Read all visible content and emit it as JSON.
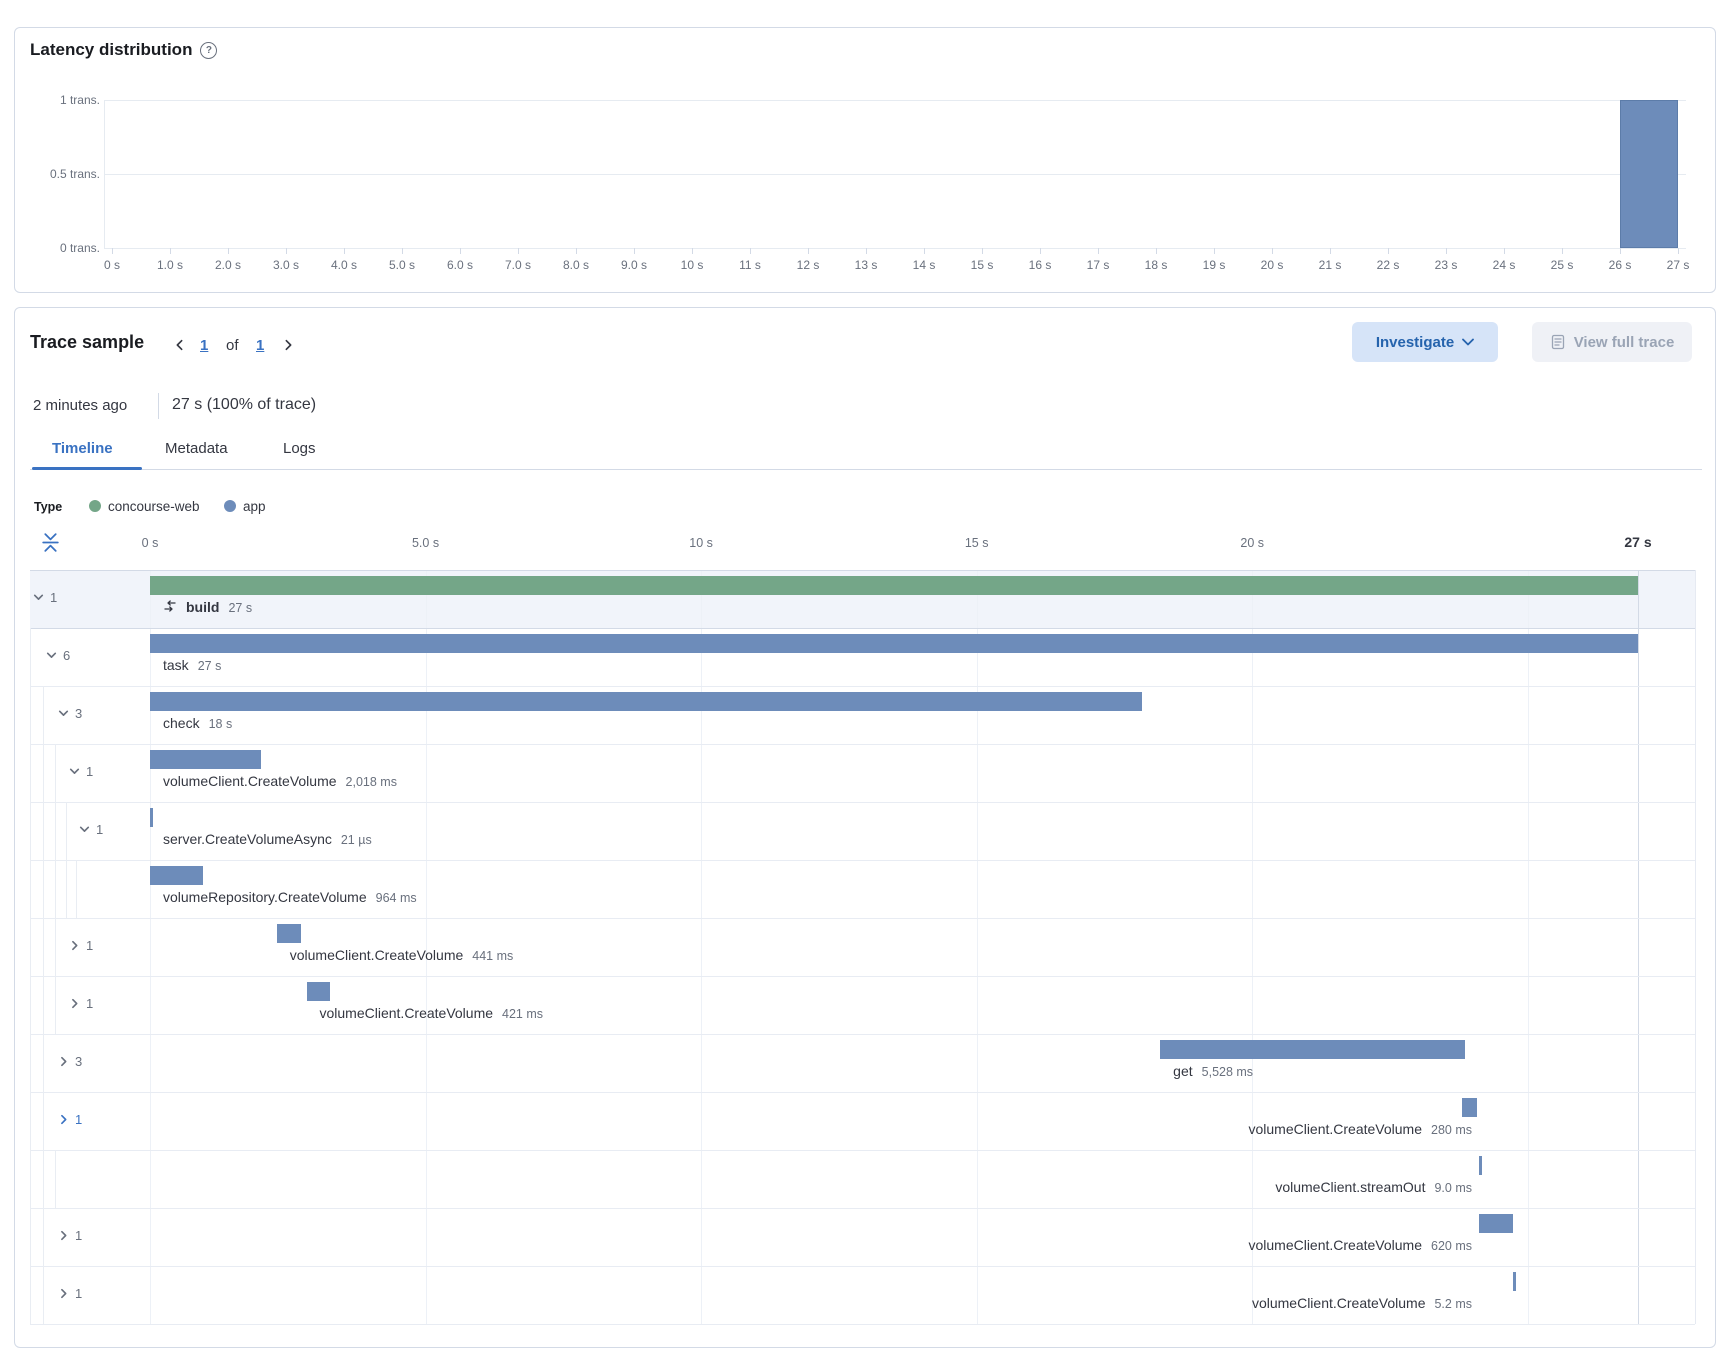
{
  "colors": {
    "green_bar": "#74a688",
    "blue_bar": "#6d8cba",
    "accent_blue": "#3a72c2",
    "selected_row_bg": "#f1f4fa",
    "grid_line": "#edf1f7",
    "border": "#d3dae6"
  },
  "icons": {
    "help": "question-in-circle-icon",
    "investigate_caret": "chevron-down-icon",
    "view_full_trace": "document-icon",
    "fold": "fold-timeline-icon",
    "transaction": "transaction-merge-icon"
  },
  "latency_panel": {
    "title": "Latency distribution"
  },
  "trace_panel": {
    "title": "Trace sample",
    "pagination": {
      "current": "1",
      "of_label": "of",
      "total": "1"
    },
    "timestamp": "2 minutes ago",
    "duration_summary": "27 s (100% of trace)",
    "investigate_button": {
      "label": "Investigate"
    },
    "view_full_trace_button": {
      "label": "View full trace"
    },
    "tabs": [
      {
        "label": "Timeline",
        "active": true
      },
      {
        "label": "Metadata",
        "active": false
      },
      {
        "label": "Logs",
        "active": false
      }
    ],
    "legend": {
      "title": "Type",
      "items": [
        {
          "label": "concourse-web",
          "color": "#74a688"
        },
        {
          "label": "app",
          "color": "#6d8cba"
        }
      ]
    }
  },
  "chart_data": [
    {
      "type": "bar",
      "title": "Latency distribution",
      "xlabel": "",
      "ylabel": "transactions",
      "x_range_s": [
        0,
        27
      ],
      "y_range": [
        0,
        1
      ],
      "grid": true,
      "x_tick_labels": [
        "0 s",
        "1.0 s",
        "2.0 s",
        "3.0 s",
        "4.0 s",
        "5.0 s",
        "6.0 s",
        "7.0 s",
        "8.0 s",
        "9.0 s",
        "10 s",
        "11 s",
        "12 s",
        "13 s",
        "14 s",
        "15 s",
        "16 s",
        "17 s",
        "18 s",
        "19 s",
        "20 s",
        "21 s",
        "22 s",
        "23 s",
        "24 s",
        "25 s",
        "26 s",
        "27 s"
      ],
      "y_ticks": [
        {
          "label": "1 trans.",
          "value": 1
        },
        {
          "label": "0.5 trans.",
          "value": 0.5
        },
        {
          "label": "0 trans.",
          "value": 0
        }
      ],
      "bars": [
        {
          "x_start_s": 26,
          "x_end_s": 27,
          "count": 1
        }
      ],
      "bar_color": "#6d8cba"
    },
    {
      "type": "gantt",
      "title": "Trace timeline waterfall",
      "total_s": 27,
      "axis_ticks": [
        {
          "s": 0,
          "label": "0 s"
        },
        {
          "s": 5,
          "label": "5.0 s"
        },
        {
          "s": 10,
          "label": "10 s"
        },
        {
          "s": 15,
          "label": "15 s"
        },
        {
          "s": 20,
          "label": "20 s"
        },
        {
          "s": 25,
          "label": ""
        }
      ],
      "end_tick": {
        "s": 27,
        "label": "27 s"
      },
      "rows": [
        {
          "name": "build",
          "duration_label": "27 s",
          "start_s": 0,
          "duration_s": 27,
          "color": "green",
          "depth": 0,
          "toggle": "expanded",
          "children_count": "1",
          "selected": true,
          "bold": true,
          "icon": "transaction",
          "label_align": "left"
        },
        {
          "name": "task",
          "duration_label": "27 s",
          "start_s": 0,
          "duration_s": 27,
          "color": "blue",
          "depth": 1,
          "toggle": "expanded",
          "children_count": "6",
          "label_align": "left"
        },
        {
          "name": "check",
          "duration_label": "18 s",
          "start_s": 0,
          "duration_s": 18,
          "color": "blue",
          "depth": 2,
          "toggle": "expanded",
          "children_count": "3",
          "label_align": "left"
        },
        {
          "name": "volumeClient.CreateVolume",
          "duration_label": "2,018 ms",
          "start_s": 0,
          "duration_s": 2.018,
          "color": "blue",
          "depth": 3,
          "toggle": "expanded",
          "children_count": "1",
          "label_align": "left"
        },
        {
          "name": "server.CreateVolumeAsync",
          "duration_label": "21 µs",
          "start_s": 0,
          "duration_s": 2.1e-05,
          "color": "blue",
          "depth": 4,
          "toggle": "expanded",
          "children_count": "1",
          "label_align": "left"
        },
        {
          "name": "volumeRepository.CreateVolume",
          "duration_label": "964 ms",
          "start_s": 0,
          "duration_s": 0.964,
          "color": "blue",
          "depth": 5,
          "toggle": "none",
          "children_count": "",
          "label_align": "left"
        },
        {
          "name": "volumeClient.CreateVolume",
          "duration_label": "441 ms",
          "start_s": 2.3,
          "duration_s": 0.441,
          "color": "blue",
          "depth": 3,
          "toggle": "collapsed",
          "children_count": "1",
          "label_align": "left"
        },
        {
          "name": "volumeClient.CreateVolume",
          "duration_label": "421 ms",
          "start_s": 2.84,
          "duration_s": 0.421,
          "color": "blue",
          "depth": 3,
          "toggle": "collapsed",
          "children_count": "1",
          "label_align": "left"
        },
        {
          "name": "get",
          "duration_label": "5,528 ms",
          "start_s": 18.33,
          "duration_s": 5.528,
          "color": "blue",
          "depth": 2,
          "toggle": "collapsed",
          "children_count": "3",
          "label_align": "left"
        },
        {
          "name": "volumeClient.CreateVolume",
          "duration_label": "280 ms",
          "start_s": 23.8,
          "duration_s": 0.28,
          "color": "blue",
          "depth": 2,
          "toggle": "collapsed",
          "children_count": "1",
          "toggle_active": true,
          "label_align": "right"
        },
        {
          "name": "volumeClient.streamOut",
          "duration_label": "9.0 ms",
          "start_s": 24.12,
          "duration_s": 0.009,
          "color": "blue",
          "depth": 3,
          "toggle": "none",
          "children_count": "",
          "label_align": "right"
        },
        {
          "name": "volumeClient.CreateVolume",
          "duration_label": "620 ms",
          "start_s": 24.12,
          "duration_s": 0.62,
          "color": "blue",
          "depth": 2,
          "toggle": "collapsed",
          "children_count": "1",
          "label_align": "right"
        },
        {
          "name": "volumeClient.CreateVolume",
          "duration_label": "5.2 ms",
          "start_s": 24.74,
          "duration_s": 0.0052,
          "color": "blue",
          "depth": 2,
          "toggle": "collapsed",
          "children_count": "1",
          "label_align": "right"
        }
      ]
    }
  ]
}
